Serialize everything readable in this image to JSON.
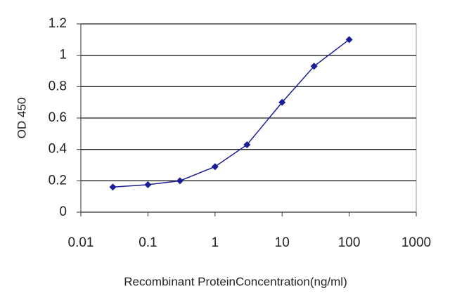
{
  "chart_data": {
    "type": "line",
    "xlabel": "Recombinant ProteinConcentration(ng/ml)",
    "ylabel": "OD 450",
    "x": [
      0.03,
      0.1,
      0.3,
      1,
      3,
      10,
      30,
      100
    ],
    "series": [
      {
        "color": "#1c1c96",
        "values": [
          0.16,
          0.175,
          0.2,
          0.29,
          0.43,
          0.7,
          0.93,
          1.1
        ]
      }
    ],
    "xlim": [
      0.01,
      1000
    ],
    "xticks": [
      0.01,
      0.1,
      1,
      10,
      100,
      1000
    ],
    "xlog": true,
    "ylim": [
      0,
      1.2
    ],
    "yticks": [
      0,
      0.2,
      0.4,
      0.6,
      0.8,
      1,
      1.2
    ],
    "grid": true
  }
}
